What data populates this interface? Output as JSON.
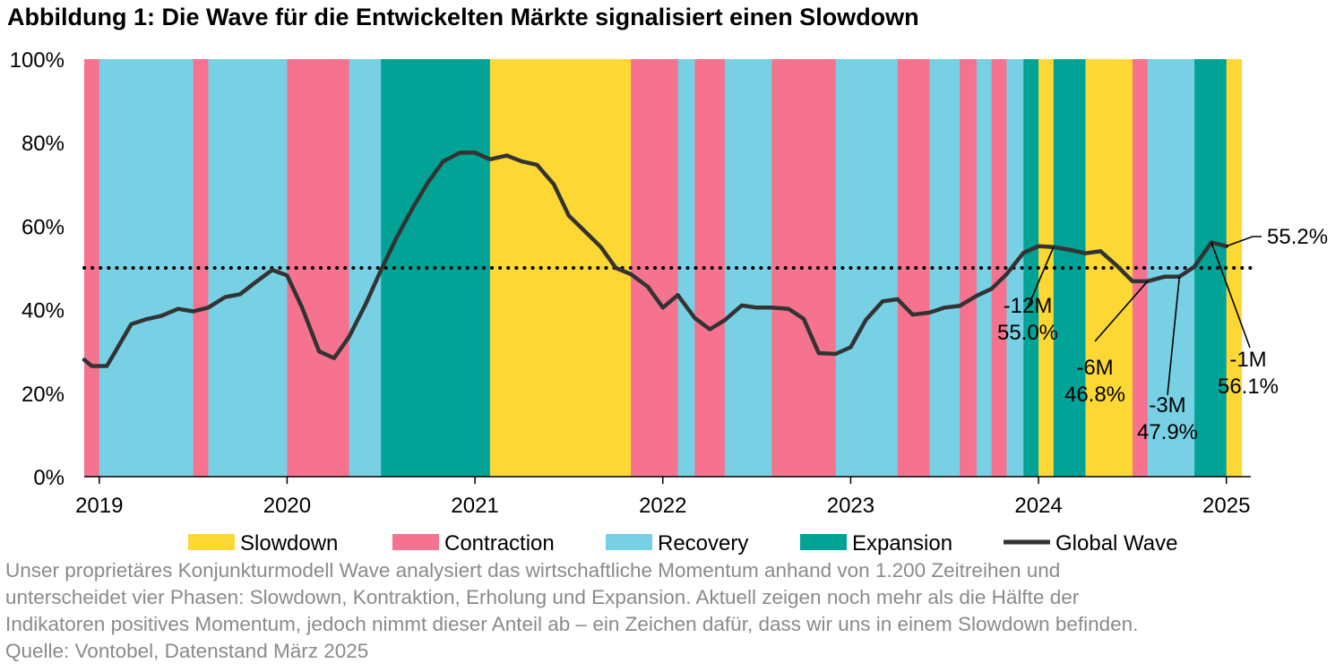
{
  "title": "Abbildung 1: Die Wave für die Entwickelten Märkte signalisiert einen Slowdown",
  "colors": {
    "Slowdown": "#fdd835",
    "Contraction": "#f5738f",
    "Recovery": "#78d0e4",
    "Expansion": "#00a396",
    "line": "#333333"
  },
  "chart_data": {
    "type": "line",
    "x_unit": "years",
    "xlim": [
      2018.92,
      2025.13
    ],
    "ylim": [
      0,
      100
    ],
    "yticks": [
      0,
      20,
      40,
      60,
      80,
      100
    ],
    "ytick_labels": [
      "0%",
      "20%",
      "40%",
      "60%",
      "80%",
      "100%"
    ],
    "xticks": [
      2019,
      2020,
      2021,
      2022,
      2023,
      2024,
      2025
    ],
    "xtick_labels": [
      "2019",
      "2020",
      "2021",
      "2022",
      "2023",
      "2024",
      "2025"
    ],
    "threshold": 50,
    "phases": [
      {
        "start": 2018.92,
        "end": 2019.0,
        "phase": "Contraction"
      },
      {
        "start": 2019.0,
        "end": 2019.5,
        "phase": "Recovery"
      },
      {
        "start": 2019.5,
        "end": 2019.58,
        "phase": "Contraction"
      },
      {
        "start": 2019.58,
        "end": 2020.0,
        "phase": "Recovery"
      },
      {
        "start": 2020.0,
        "end": 2020.33,
        "phase": "Contraction"
      },
      {
        "start": 2020.33,
        "end": 2020.5,
        "phase": "Recovery"
      },
      {
        "start": 2020.5,
        "end": 2021.08,
        "phase": "Expansion"
      },
      {
        "start": 2021.08,
        "end": 2021.83,
        "phase": "Slowdown"
      },
      {
        "start": 2021.83,
        "end": 2022.08,
        "phase": "Contraction"
      },
      {
        "start": 2022.08,
        "end": 2022.17,
        "phase": "Recovery"
      },
      {
        "start": 2022.17,
        "end": 2022.33,
        "phase": "Contraction"
      },
      {
        "start": 2022.33,
        "end": 2022.58,
        "phase": "Recovery"
      },
      {
        "start": 2022.58,
        "end": 2022.92,
        "phase": "Contraction"
      },
      {
        "start": 2022.92,
        "end": 2023.25,
        "phase": "Recovery"
      },
      {
        "start": 2023.25,
        "end": 2023.42,
        "phase": "Contraction"
      },
      {
        "start": 2023.42,
        "end": 2023.58,
        "phase": "Recovery"
      },
      {
        "start": 2023.58,
        "end": 2023.67,
        "phase": "Contraction"
      },
      {
        "start": 2023.67,
        "end": 2023.75,
        "phase": "Recovery"
      },
      {
        "start": 2023.75,
        "end": 2023.83,
        "phase": "Contraction"
      },
      {
        "start": 2023.83,
        "end": 2023.92,
        "phase": "Recovery"
      },
      {
        "start": 2023.92,
        "end": 2024.0,
        "phase": "Expansion"
      },
      {
        "start": 2024.0,
        "end": 2024.08,
        "phase": "Slowdown"
      },
      {
        "start": 2024.08,
        "end": 2024.25,
        "phase": "Expansion"
      },
      {
        "start": 2024.25,
        "end": 2024.5,
        "phase": "Slowdown"
      },
      {
        "start": 2024.5,
        "end": 2024.58,
        "phase": "Contraction"
      },
      {
        "start": 2024.58,
        "end": 2024.83,
        "phase": "Recovery"
      },
      {
        "start": 2024.83,
        "end": 2025.0,
        "phase": "Expansion"
      },
      {
        "start": 2025.0,
        "end": 2025.08,
        "phase": "Slowdown"
      }
    ],
    "series": [
      {
        "name": "Global Wave",
        "points": [
          [
            2018.92,
            28.0
          ],
          [
            2018.96,
            26.5
          ],
          [
            2019.04,
            26.5
          ],
          [
            2019.08,
            29.5
          ],
          [
            2019.17,
            36.5
          ],
          [
            2019.25,
            37.7
          ],
          [
            2019.33,
            38.5
          ],
          [
            2019.42,
            40.2
          ],
          [
            2019.5,
            39.6
          ],
          [
            2019.58,
            40.5
          ],
          [
            2019.67,
            43.0
          ],
          [
            2019.75,
            43.7
          ],
          [
            2019.83,
            46.5
          ],
          [
            2019.92,
            49.5
          ],
          [
            2020.0,
            48.2
          ],
          [
            2020.08,
            40.5
          ],
          [
            2020.17,
            30.0
          ],
          [
            2020.25,
            28.4
          ],
          [
            2020.33,
            33.5
          ],
          [
            2020.42,
            41.5
          ],
          [
            2020.5,
            49.5
          ],
          [
            2020.58,
            57.0
          ],
          [
            2020.67,
            64.5
          ],
          [
            2020.75,
            70.5
          ],
          [
            2020.83,
            75.5
          ],
          [
            2020.92,
            77.6
          ],
          [
            2021.0,
            77.6
          ],
          [
            2021.08,
            76.0
          ],
          [
            2021.17,
            76.9
          ],
          [
            2021.25,
            75.5
          ],
          [
            2021.33,
            74.7
          ],
          [
            2021.42,
            70.0
          ],
          [
            2021.5,
            62.5
          ],
          [
            2021.58,
            59.0
          ],
          [
            2021.67,
            55.0
          ],
          [
            2021.75,
            50.0
          ],
          [
            2021.83,
            48.5
          ],
          [
            2021.92,
            45.5
          ],
          [
            2022.0,
            40.5
          ],
          [
            2022.08,
            43.5
          ],
          [
            2022.17,
            38.0
          ],
          [
            2022.25,
            35.3
          ],
          [
            2022.33,
            37.5
          ],
          [
            2022.42,
            41.0
          ],
          [
            2022.5,
            40.5
          ],
          [
            2022.58,
            40.5
          ],
          [
            2022.67,
            40.2
          ],
          [
            2022.75,
            37.8
          ],
          [
            2022.83,
            29.6
          ],
          [
            2022.92,
            29.4
          ],
          [
            2023.0,
            31.0
          ],
          [
            2023.08,
            37.5
          ],
          [
            2023.17,
            42.0
          ],
          [
            2023.25,
            42.5
          ],
          [
            2023.33,
            38.8
          ],
          [
            2023.42,
            39.3
          ],
          [
            2023.5,
            40.5
          ],
          [
            2023.58,
            40.9
          ],
          [
            2023.67,
            43.3
          ],
          [
            2023.75,
            45.0
          ],
          [
            2023.83,
            48.5
          ],
          [
            2023.92,
            53.6
          ],
          [
            2024.0,
            55.2
          ],
          [
            2024.08,
            55.0
          ],
          [
            2024.17,
            54.3
          ],
          [
            2024.25,
            53.5
          ],
          [
            2024.33,
            54.0
          ],
          [
            2024.42,
            50.4
          ],
          [
            2024.5,
            46.8
          ],
          [
            2024.58,
            46.8
          ],
          [
            2024.67,
            47.9
          ],
          [
            2024.75,
            47.9
          ],
          [
            2024.83,
            50.3
          ],
          [
            2024.92,
            56.1
          ],
          [
            2025.0,
            55.2
          ]
        ]
      }
    ],
    "annotations": [
      {
        "label": "-12M",
        "value": "55.0%",
        "x": 2024.08,
        "y": 55.0
      },
      {
        "label": "-6M",
        "value": "46.8%",
        "x": 2024.58,
        "y": 46.8
      },
      {
        "label": "-3M",
        "value": "47.9%",
        "x": 2024.75,
        "y": 47.9
      },
      {
        "label": "-1M",
        "value": "56.1%",
        "x": 2024.92,
        "y": 56.1
      }
    ],
    "end_label": "55.2%",
    "legend": {
      "position": "bottom",
      "items": [
        {
          "label": "Slowdown",
          "kind": "patch",
          "phase": "Slowdown"
        },
        {
          "label": "Contraction",
          "kind": "patch",
          "phase": "Contraction"
        },
        {
          "label": "Recovery",
          "kind": "patch",
          "phase": "Recovery"
        },
        {
          "label": "Expansion",
          "kind": "patch",
          "phase": "Expansion"
        },
        {
          "label": "Global Wave",
          "kind": "line"
        }
      ]
    }
  },
  "caption": {
    "lines": [
      "Unser proprietäres Konjunkturmodell Wave analysiert das wirtschaftliche Momentum anhand von 1.200 Zeitreihen und",
      "unterscheidet vier Phasen: Slowdown, Kontraktion, Erholung und Expansion. Aktuell zeigen noch mehr als die Hälfte der",
      "Indikatoren positives Momentum, jedoch nimmt dieser Anteil ab – ein Zeichen dafür, dass wir uns in einem Slowdown befinden."
    ],
    "source": "Quelle: Vontobel, Datenstand März 2025"
  }
}
